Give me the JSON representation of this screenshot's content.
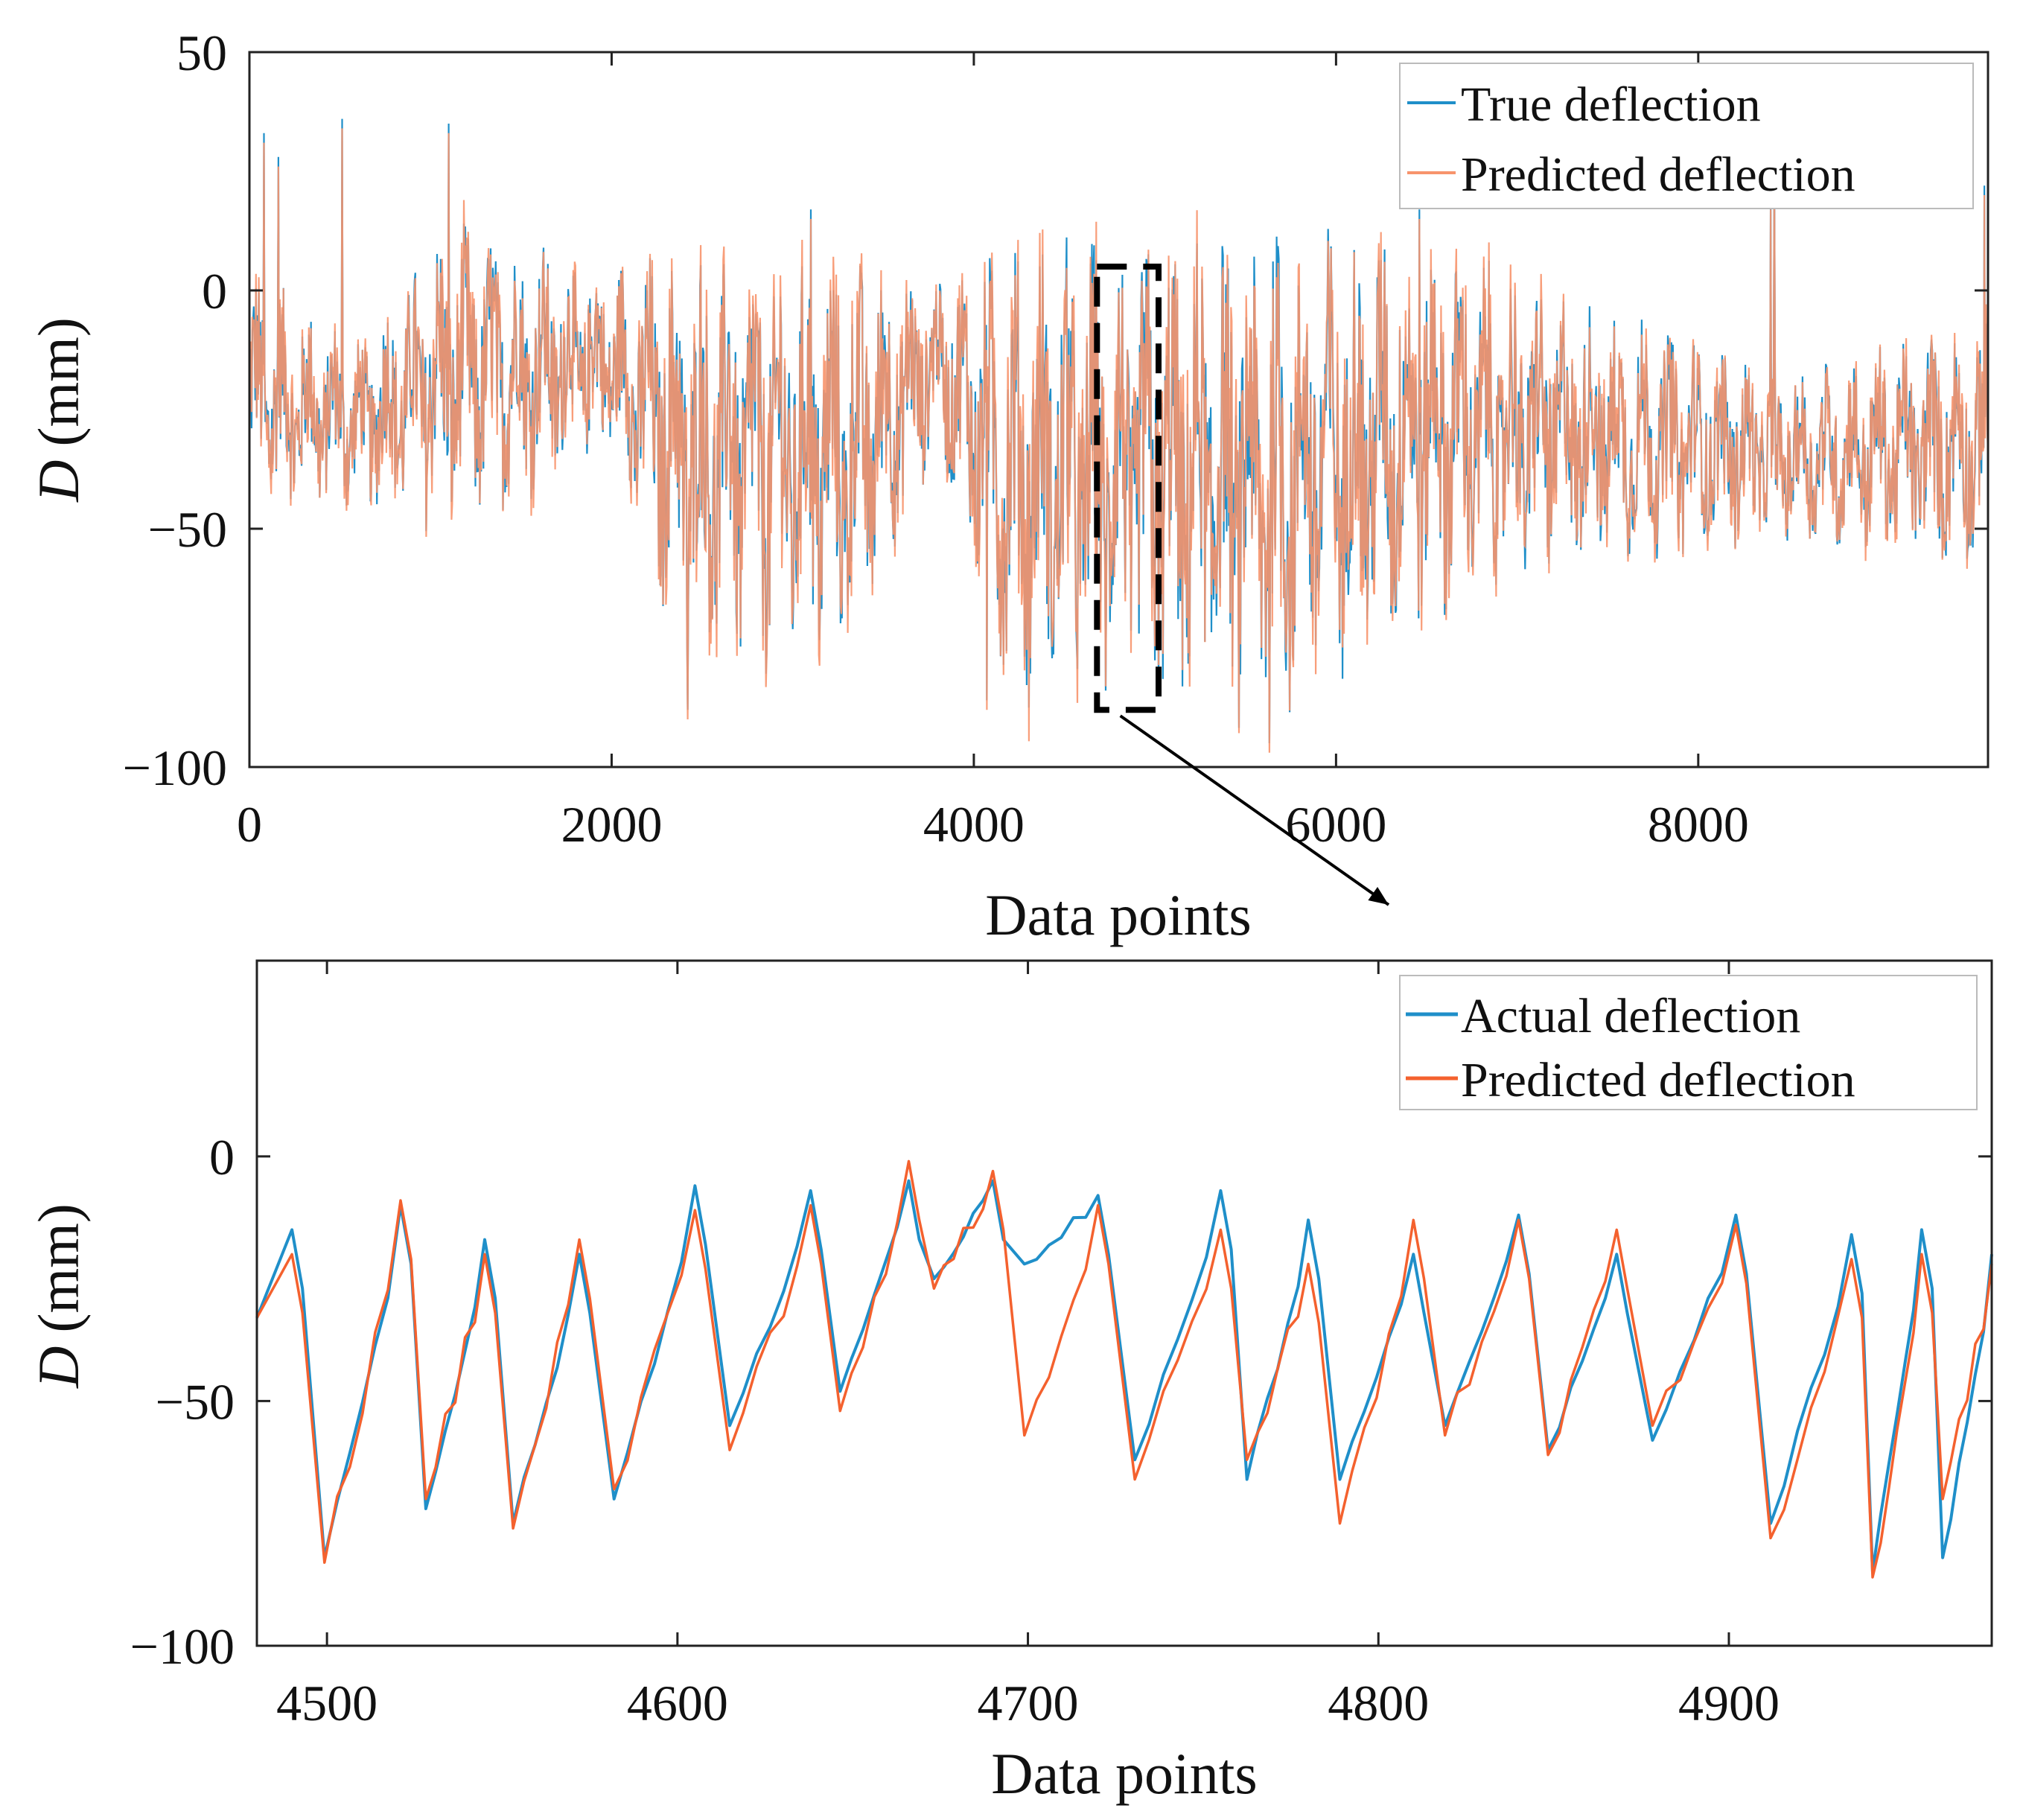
{
  "colors": {
    "true_series": "#1f8fc9",
    "predicted_series": "#f4612e",
    "predicted_overview": "#f7946c",
    "axes": "#222222",
    "zoom_box": "#000000"
  },
  "chart_data": [
    {
      "type": "line",
      "title": "",
      "xlabel": "Data points",
      "ylabel_italic": "D",
      "ylabel": "(mm)",
      "xlim": [
        0,
        9600
      ],
      "ylim": [
        -100,
        50
      ],
      "xticks": [
        0,
        2000,
        4000,
        6000,
        8000
      ],
      "xtick_labels": [
        "0",
        "2000",
        "4000",
        "6000",
        "8000"
      ],
      "yticks": [
        50,
        0,
        -50,
        -100
      ],
      "ytick_labels": [
        "50",
        "0",
        "−50",
        "−100"
      ],
      "grid": false,
      "legend_position": "top-right",
      "series": [
        {
          "name": "True deflection",
          "color_key": "true_series"
        },
        {
          "name": "Predicted deflection",
          "color_key": "predicted_overview"
        }
      ],
      "signal": {
        "count": 9600,
        "envelope": [
          {
            "x": 0,
            "center": -22,
            "amp": 18
          },
          {
            "x": 600,
            "center": -28,
            "amp": 12
          },
          {
            "x": 1100,
            "center": -18,
            "amp": 22
          },
          {
            "x": 2000,
            "center": -15,
            "amp": 14
          },
          {
            "x": 2400,
            "center": -35,
            "amp": 30
          },
          {
            "x": 3300,
            "center": -35,
            "amp": 30
          },
          {
            "x": 3800,
            "center": -15,
            "amp": 12
          },
          {
            "x": 4200,
            "center": -38,
            "amp": 32
          },
          {
            "x": 5600,
            "center": -40,
            "amp": 35
          },
          {
            "x": 6500,
            "center": -28,
            "amp": 28
          },
          {
            "x": 7500,
            "center": -30,
            "amp": 18
          },
          {
            "x": 8500,
            "center": -35,
            "amp": 12
          },
          {
            "x": 9600,
            "center": -32,
            "amp": 18
          }
        ],
        "spikes": [
          {
            "x": 80,
            "value": 33
          },
          {
            "x": 160,
            "value": 28
          },
          {
            "x": 510,
            "value": 36
          },
          {
            "x": 1100,
            "value": 35
          },
          {
            "x": 2420,
            "value": -88
          },
          {
            "x": 3100,
            "value": 17
          },
          {
            "x": 4070,
            "value": -86
          },
          {
            "x": 5630,
            "value": -95
          },
          {
            "x": 6460,
            "value": 17
          },
          {
            "x": 8400,
            "value": 19
          },
          {
            "x": 8420,
            "value": 27
          },
          {
            "x": 9580,
            "value": 22
          }
        ]
      },
      "zoom_box": {
        "x": [
          4680,
          5020
        ],
        "y": [
          -88,
          5
        ]
      }
    },
    {
      "type": "line",
      "title": "",
      "xlabel": "Data points",
      "ylabel_italic": "D",
      "ylabel": "(mm)",
      "xlim": [
        4480,
        4975
      ],
      "ylim": [
        -100,
        40
      ],
      "xticks": [
        4500,
        4600,
        4700,
        4800,
        4900
      ],
      "xtick_labels": [
        "4500",
        "4600",
        "4700",
        "4800",
        "4900"
      ],
      "yticks": [
        0,
        -50,
        -100
      ],
      "ytick_labels": [
        "0",
        "−50",
        "−100"
      ],
      "grid": false,
      "legend_position": "top-right",
      "series": [
        {
          "name": "Actual deflection",
          "color_key": "true_series",
          "cycle_start_x": [
            4480,
            4501,
            4527,
            4557,
            4582,
            4612,
            4642,
            4672,
            4696,
            4730,
            4762,
            4790,
            4817,
            4850,
            4880,
            4912,
            4946
          ],
          "cycle_peak_x": [
            4490,
            4521,
            4545,
            4572,
            4605,
            4638,
            4666,
            4690,
            4720,
            4755,
            4780,
            4810,
            4840,
            4868,
            4902,
            4935,
            4955,
            4975
          ],
          "cycle_peak_y": [
            -15,
            -10,
            -17,
            -20,
            -6,
            -7,
            -5,
            -5,
            -8,
            -7,
            -13,
            -20,
            -12,
            -20,
            -12,
            -16,
            -15,
            -20
          ],
          "cycle_trough_y": [
            -82,
            -72,
            -75,
            -70,
            -55,
            -48,
            -25,
            -22,
            -62,
            -66,
            -66,
            -55,
            -60,
            -58,
            -75,
            -85,
            -82
          ]
        },
        {
          "name": "Predicted deflection",
          "color_key": "predicted_series",
          "cycle_peak_y": [
            -20,
            -9,
            -20,
            -17,
            -11,
            -10,
            -1,
            -3,
            -10,
            -15,
            -22,
            -13,
            -13,
            -15,
            -14,
            -21,
            -20,
            -22
          ],
          "cycle_trough_y": [
            -83,
            -70,
            -76,
            -68,
            -60,
            -52,
            -27,
            -57,
            -66,
            -62,
            -75,
            -57,
            -61,
            -55,
            -78,
            -86,
            -70
          ]
        }
      ]
    }
  ]
}
